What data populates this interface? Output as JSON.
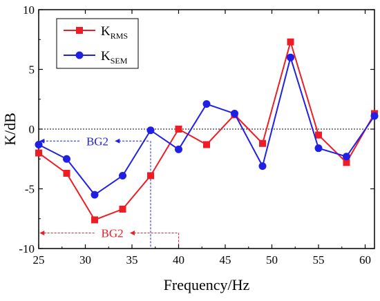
{
  "chart_data": {
    "type": "line",
    "xlabel": "Frequency/Hz",
    "ylabel": "K/dB",
    "xlim": [
      25,
      61
    ],
    "ylim": [
      -10,
      10
    ],
    "xticks": [
      25,
      30,
      35,
      40,
      45,
      50,
      55,
      60
    ],
    "yticks": [
      -10,
      -5,
      0,
      5,
      10
    ],
    "grid": false,
    "legend_position": "top-left",
    "reference_line": {
      "y": 0,
      "style": "dotted"
    },
    "series": [
      {
        "name_base": "K",
        "name_sub": "RMS",
        "color": "#ee1c25",
        "marker": "square",
        "x": [
          25,
          28,
          31,
          34,
          37,
          40,
          43,
          46,
          49,
          52,
          55,
          58,
          61
        ],
        "y": [
          -2.0,
          -3.7,
          -7.6,
          -6.7,
          -3.9,
          0.0,
          -1.3,
          1.2,
          -1.2,
          7.3,
          -0.5,
          -2.8,
          1.3
        ]
      },
      {
        "name_base": "K",
        "name_sub": "SEM",
        "color": "#1f1fe6",
        "marker": "circle",
        "x": [
          25,
          28,
          31,
          34,
          37,
          40,
          43,
          46,
          49,
          52,
          55,
          58,
          61
        ],
        "y": [
          -1.3,
          -2.5,
          -5.5,
          -3.9,
          -0.1,
          -1.7,
          2.1,
          1.3,
          -3.1,
          6.0,
          -1.6,
          -2.3,
          1.1
        ]
      }
    ],
    "annotations": [
      {
        "text": "BG2",
        "color": "#1f1fe6",
        "x_from": 25,
        "x_to": 37,
        "y": -1.0,
        "label_x": 31
      },
      {
        "text": "BG2",
        "color": "#ee1c25",
        "x_from": 25,
        "x_to": 40,
        "y": -8.7,
        "label_x": 32.6
      }
    ]
  }
}
